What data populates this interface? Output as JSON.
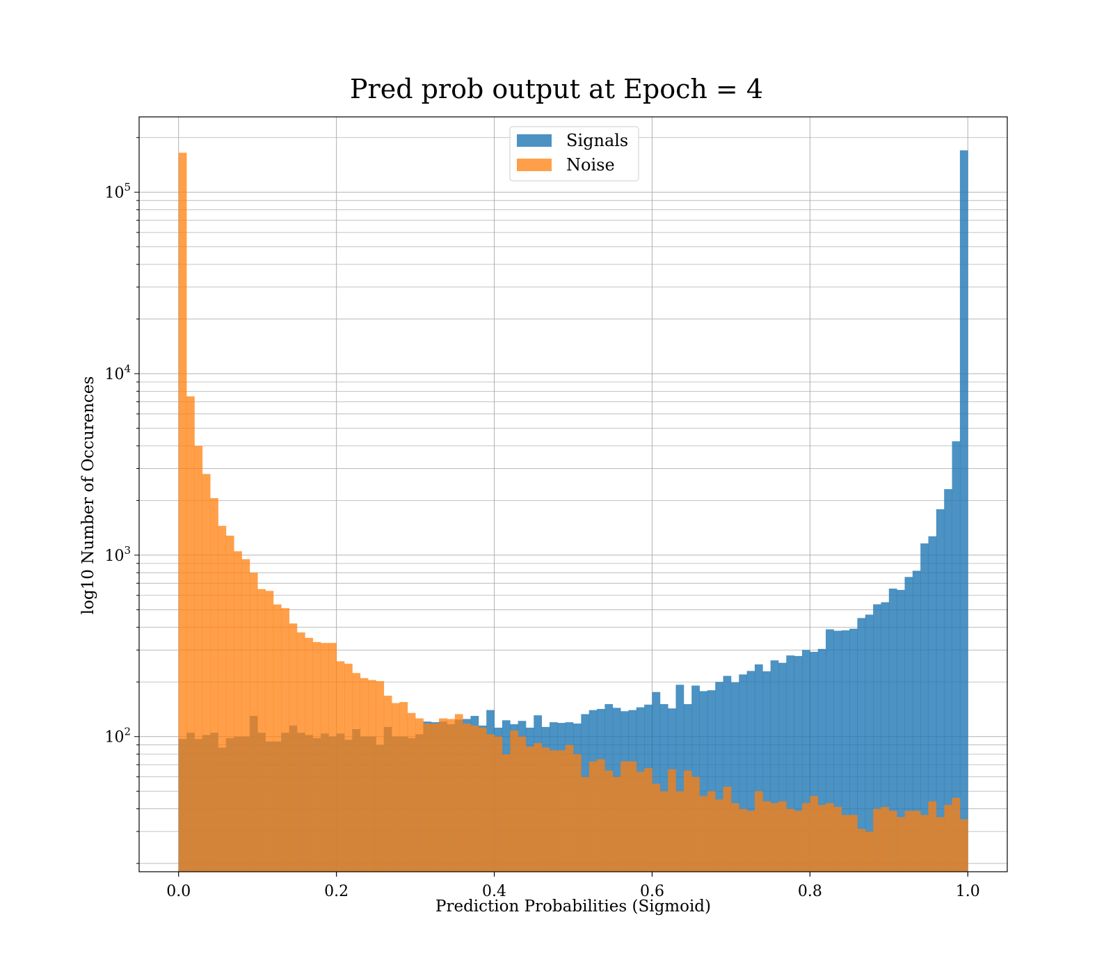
{
  "chart_data": {
    "type": "bar",
    "title": "Pred prob output at Epoch = 4",
    "xlabel": "Prediction Probabilities (Sigmoid)",
    "ylabel": "log10 Number of Occurences",
    "xlim": [
      -0.05,
      1.05
    ],
    "ylim": [
      18,
      260000
    ],
    "yscale": "log",
    "grid": true,
    "legend_position": "top-center",
    "bins": 100,
    "bin_range": [
      0,
      1
    ],
    "xticks": [
      0.0,
      0.2,
      0.4,
      0.6,
      0.8,
      1.0
    ],
    "xtick_labels": [
      "0.0",
      "0.2",
      "0.4",
      "0.6",
      "0.8",
      "1.0"
    ],
    "yticks": [
      100,
      1000,
      10000,
      100000
    ],
    "ytick_labels": [
      {
        "base": "10",
        "exp": "2"
      },
      {
        "base": "10",
        "exp": "3"
      },
      {
        "base": "10",
        "exp": "4"
      },
      {
        "base": "10",
        "exp": "5"
      }
    ],
    "series": [
      {
        "name": "Signals",
        "color": "#1f77b4",
        "opacity": 0.8,
        "values": [
          97,
          105,
          97,
          102,
          105,
          87,
          98,
          100,
          100,
          130,
          105,
          94,
          94,
          105,
          115,
          105,
          102,
          98,
          104,
          100,
          104,
          96,
          110,
          100,
          100,
          90,
          113,
          100,
          100,
          98,
          103,
          121,
          120,
          121,
          117,
          124,
          125,
          130,
          115,
          140,
          112,
          123,
          117,
          122,
          112,
          131,
          113,
          120,
          119,
          120,
          118,
          133,
          140,
          142,
          151,
          144,
          138,
          140,
          145,
          150,
          176,
          151,
          143,
          193,
          151,
          191,
          178,
          180,
          200,
          216,
          199,
          220,
          230,
          250,
          229,
          263,
          255,
          280,
          278,
          300,
          293,
          304,
          390,
          383,
          385,
          393,
          450,
          470,
          536,
          550,
          654,
          643,
          758,
          820,
          1160,
          1270,
          1790,
          2310,
          4240,
          170000
        ]
      },
      {
        "name": "Noise",
        "color": "#ff7f0e",
        "opacity": 0.75,
        "values": [
          165000,
          7500,
          4000,
          2800,
          2060,
          1450,
          1280,
          1050,
          950,
          800,
          650,
          635,
          535,
          510,
          420,
          375,
          350,
          332,
          328,
          328,
          260,
          252,
          224,
          210,
          205,
          202,
          168,
          153,
          155,
          135,
          126,
          118,
          118,
          126,
          125,
          133,
          118,
          115,
          112,
          103,
          100,
          80,
          108,
          100,
          88,
          92,
          87,
          84,
          84,
          90,
          80,
          60,
          73,
          75,
          65,
          60,
          73,
          73,
          64,
          67,
          55,
          50,
          66,
          50,
          65,
          60,
          47,
          50,
          45,
          53,
          43,
          40,
          39,
          50,
          44,
          43,
          44,
          40,
          39,
          43,
          47,
          42,
          43,
          41,
          37,
          37,
          31,
          30,
          40,
          41,
          39,
          36,
          39,
          39,
          37,
          44,
          36,
          42,
          46,
          35
        ]
      }
    ]
  }
}
